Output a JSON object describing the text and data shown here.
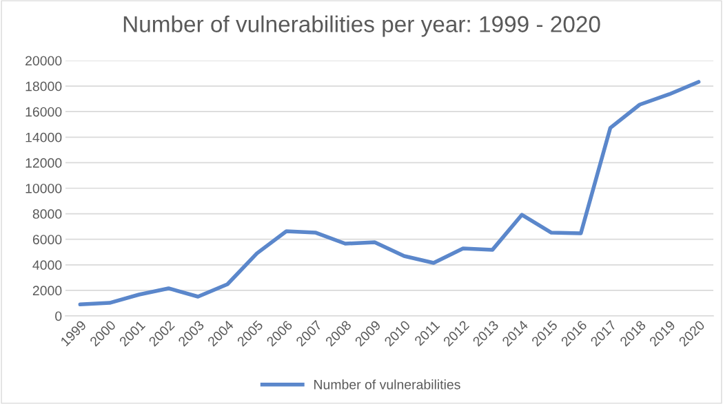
{
  "chart_data": {
    "type": "line",
    "title": "Number of vulnerabilities per year: 1999 - 2020",
    "categories": [
      "1999",
      "2000",
      "2001",
      "2002",
      "2003",
      "2004",
      "2005",
      "2006",
      "2007",
      "2008",
      "2009",
      "2010",
      "2011",
      "2012",
      "2013",
      "2014",
      "2015",
      "2016",
      "2017",
      "2018",
      "2019",
      "2020"
    ],
    "series": [
      {
        "name": "Number of vulnerabilities",
        "color": "#5b87cb",
        "values": [
          900,
          1020,
          1670,
          2160,
          1510,
          2480,
          4900,
          6630,
          6520,
          5660,
          5770,
          4690,
          4150,
          5280,
          5180,
          7920,
          6520,
          6470,
          14720,
          16550,
          17360,
          18330
        ]
      }
    ],
    "ylim": [
      0,
      20000
    ],
    "yticks": [
      0,
      2000,
      4000,
      6000,
      8000,
      10000,
      12000,
      14000,
      16000,
      18000,
      20000
    ],
    "grid": "y",
    "legend": "bottom",
    "marker": "none",
    "line_style": "solid"
  }
}
